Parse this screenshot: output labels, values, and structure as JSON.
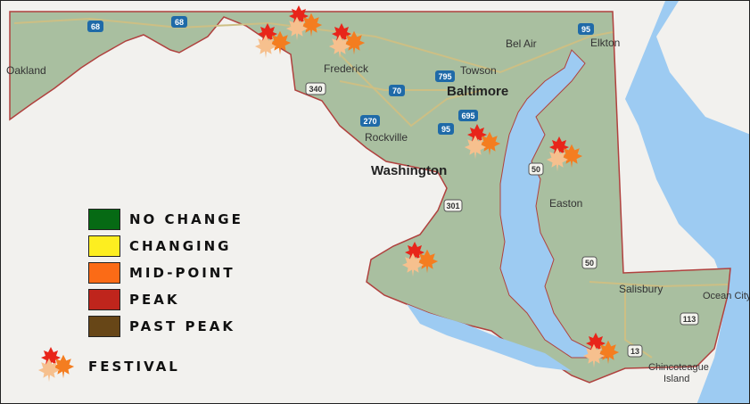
{
  "legend": {
    "items": [
      {
        "label": "NO CHANGE",
        "color": "#066a14"
      },
      {
        "label": "CHANGING",
        "color": "#fdee20"
      },
      {
        "label": "MID-POINT",
        "color": "#fb6b16"
      },
      {
        "label": "PEAK",
        "color": "#bf251c"
      },
      {
        "label": "PAST PEAK",
        "color": "#674617"
      }
    ],
    "festival_label": "FESTIVAL",
    "festival_icon": "maple-leaves-icon"
  },
  "colors": {
    "land": "#a9bfa0",
    "water": "#9dcbf2",
    "border": "#b0413e",
    "background": "#f2f1ee"
  },
  "cities": {
    "oakland": "Oakland",
    "frederick": "Frederick",
    "bel_air": "Bel Air",
    "elkton": "Elkton",
    "towson": "Towson",
    "baltimore": "Baltimore",
    "rockville": "Rockville",
    "washington": "Washington",
    "easton": "Easton",
    "salisbury": "Salisbury",
    "ocean_city": "Ocean City",
    "chincoteague_1": "Chincoteague",
    "chincoteague_2": "Island"
  },
  "highways": {
    "i68a": "68",
    "i68b": "68",
    "i95a": "95",
    "i95b": "95",
    "i795": "795",
    "i70": "70",
    "i270": "270",
    "i695": "695",
    "us340": "340",
    "us301": "301",
    "us50a": "50",
    "us50b": "50",
    "us113": "113",
    "us13": "13"
  }
}
